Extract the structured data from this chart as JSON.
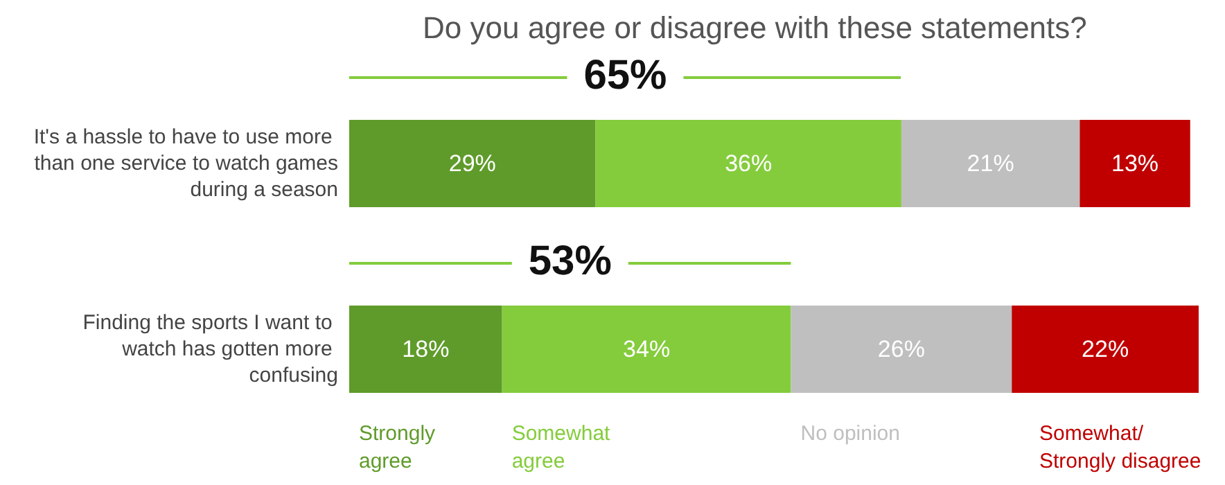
{
  "chart_data": {
    "type": "bar",
    "orientation": "horizontal",
    "stacked": true,
    "title": "Do you agree or disagree with these statements?",
    "categories": [
      "It's a hassle to have to use more than one service to watch games during a season",
      "Finding the sports I want to watch has gotten more confusing"
    ],
    "xlim": [
      0,
      100
    ],
    "tick_labels": "y",
    "legend": "bottom",
    "series": [
      {
        "name": "Strongly agree",
        "color": "#5f9b2a",
        "values": [
          29,
          18
        ],
        "value_labels": [
          "29%",
          "18%"
        ]
      },
      {
        "name": "Somewhat agree",
        "color": "#84cc3c",
        "values": [
          36,
          34
        ],
        "value_labels": [
          "36%",
          "34%"
        ]
      },
      {
        "name": "No opinion",
        "color": "#bfbfbf",
        "values": [
          21,
          26
        ],
        "value_labels": [
          "21%",
          "26%"
        ]
      },
      {
        "name": "Somewhat/ Strongly disagree",
        "color": "#c00000",
        "values": [
          13,
          22
        ],
        "value_labels": [
          "13%",
          "22%"
        ]
      }
    ],
    "annotations": [
      "65%",
      "53%"
    ]
  }
}
